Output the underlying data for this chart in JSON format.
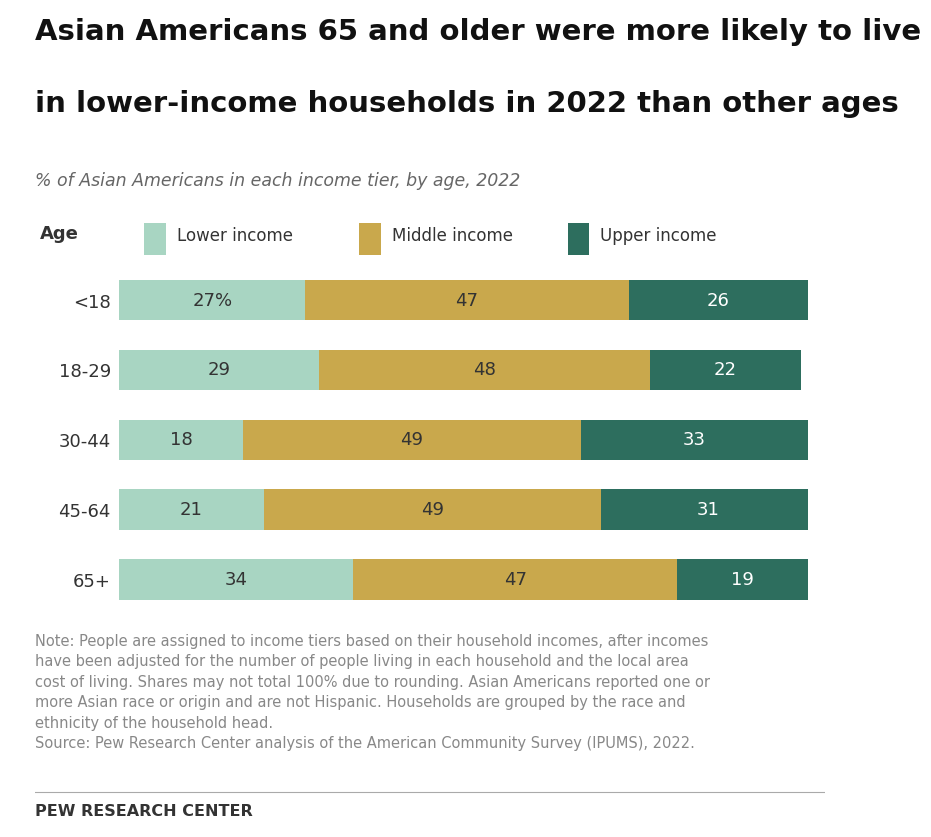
{
  "title_line1": "Asian Americans 65 and older were more likely to live",
  "title_line2": "in lower-income households in 2022 than other ages",
  "subtitle": "% of Asian Americans in each income tier, by age, 2022",
  "age_labels": [
    "<18",
    "18-29",
    "30-44",
    "45-64",
    "65+"
  ],
  "lower_income": [
    27,
    29,
    18,
    21,
    34
  ],
  "middle_income": [
    47,
    48,
    49,
    49,
    47
  ],
  "upper_income": [
    26,
    22,
    33,
    31,
    19
  ],
  "lower_label": [
    "27%",
    "29",
    "18",
    "21",
    "34"
  ],
  "middle_label": [
    "47",
    "48",
    "49",
    "49",
    "47"
  ],
  "upper_label": [
    "26",
    "22",
    "33",
    "31",
    "19"
  ],
  "color_lower": "#a8d5c2",
  "color_middle": "#c9a84c",
  "color_upper": "#2d6e5e",
  "legend_labels": [
    "Lower income",
    "Middle income",
    "Upper income"
  ],
  "note_text": "Note: People are assigned to income tiers based on their household incomes, after incomes\nhave been adjusted for the number of people living in each household and the local area\ncost of living. Shares may not total 100% due to rounding. Asian Americans reported one or\nmore Asian race or origin and are not Hispanic. Households are grouped by the race and\nethnicity of the household head.\nSource: Pew Research Center analysis of the American Community Survey (IPUMS), 2022.",
  "source_label": "PEW RESEARCH CENTER",
  "age_ylabel": "Age",
  "title_fontsize": 21,
  "subtitle_fontsize": 12.5,
  "bar_label_fontsize": 13,
  "note_fontsize": 10.5,
  "legend_fontsize": 12,
  "ytick_fontsize": 13,
  "bar_height": 0.58,
  "text_color_dark": "#333333",
  "text_color_white": "#ffffff",
  "background_color": "#ffffff",
  "note_color": "#888888",
  "top_bar_color": "#222222"
}
